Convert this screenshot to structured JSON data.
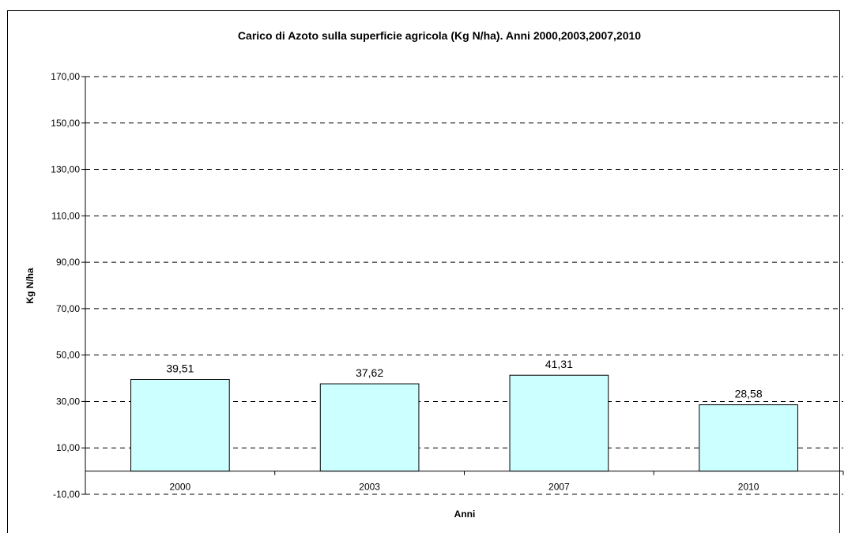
{
  "chart_data": {
    "type": "bar",
    "title": "Carico di Azoto sulla superficie agricola (Kg N/ha). Anni 2000,2003,2007,2010",
    "xlabel": "Anni",
    "ylabel": "Kg N/ha",
    "categories": [
      "2000",
      "2003",
      "2007",
      "2010"
    ],
    "values": [
      39.51,
      37.62,
      41.31,
      28.58
    ],
    "data_labels": [
      "39,51",
      "37,62",
      "41,31",
      "28,58"
    ],
    "ylim": [
      -10,
      170
    ],
    "category_axis_crosses_at": 0,
    "y_ticks": [
      -10,
      10,
      30,
      50,
      70,
      90,
      110,
      130,
      150,
      170
    ],
    "y_tick_labels": [
      "-10,00",
      "10,00",
      "30,00",
      "50,00",
      "70,00",
      "90,00",
      "110,00",
      "130,00",
      "150,00",
      "170,00"
    ],
    "grid": "horizontal dashed",
    "legend": "none",
    "bar_color": "#ccffff",
    "outline_color": "#000000"
  }
}
